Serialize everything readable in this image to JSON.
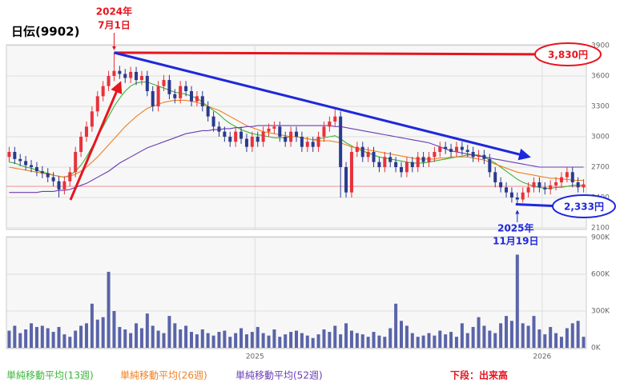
{
  "chart_data": {
    "type": "candlestick",
    "title": "日伝(9902)",
    "categories": [
      null,
      null,
      null,
      null,
      null,
      null,
      null,
      null,
      null,
      null,
      null,
      null,
      null,
      null,
      null,
      null,
      null,
      null,
      null,
      null,
      null,
      null,
      null,
      null,
      null,
      null,
      null,
      null,
      null,
      null,
      null,
      null,
      null,
      null,
      null,
      null,
      null,
      null,
      null,
      null,
      null,
      null,
      null,
      null,
      null,
      "2025",
      null,
      null,
      null,
      null,
      null,
      null,
      null,
      null,
      null,
      null,
      null,
      null,
      null,
      null,
      null,
      null,
      null,
      null,
      null,
      null,
      null,
      null,
      null,
      null,
      null,
      null,
      null,
      null,
      null,
      null,
      null,
      null,
      null,
      null,
      null,
      null,
      null,
      null,
      null,
      null,
      null,
      null,
      null,
      null,
      null,
      null,
      null,
      null,
      null,
      null,
      null,
      "2026",
      null,
      null,
      null,
      null,
      null,
      null,
      null
    ],
    "open": [
      2800,
      2850,
      2780,
      2760,
      2720,
      2700,
      2660,
      2640,
      2600,
      2560,
      2480,
      2560,
      2650,
      2850,
      3000,
      3100,
      3250,
      3400,
      3500,
      3600,
      3650,
      3620,
      3580,
      3640,
      3560,
      3600,
      3450,
      3300,
      3500,
      3560,
      3420,
      3380,
      3500,
      3450,
      3350,
      3400,
      3300,
      3200,
      3100,
      3050,
      3000,
      2950,
      3050,
      2980,
      2900,
      3000,
      2950,
      3050,
      3080,
      3100,
      3000,
      2950,
      3050,
      3000,
      2900,
      2950,
      2900,
      3000,
      3100,
      3150,
      3200,
      2700,
      2450,
      2850,
      2900,
      2800,
      2850,
      2750,
      2700,
      2800,
      2750,
      2700,
      2650,
      2750,
      2700,
      2800,
      2750,
      2800,
      2850,
      2900,
      2880,
      2850,
      2900,
      2870,
      2850,
      2800,
      2820,
      2780,
      2650,
      2550,
      2500,
      2450,
      2400,
      2380,
      2450,
      2500,
      2550,
      2500,
      2480,
      2520,
      2550,
      2600,
      2650,
      2550,
      2500
    ],
    "high": [
      2900,
      2900,
      2830,
      2810,
      2770,
      2750,
      2710,
      2690,
      2650,
      2610,
      2610,
      2700,
      2900,
      3050,
      3150,
      3300,
      3450,
      3550,
      3650,
      3830,
      3700,
      3670,
      3690,
      3690,
      3650,
      3650,
      3500,
      3550,
      3610,
      3610,
      3470,
      3550,
      3550,
      3500,
      3450,
      3450,
      3350,
      3250,
      3150,
      3100,
      3050,
      3100,
      3100,
      3030,
      3050,
      3050,
      3100,
      3130,
      3150,
      3150,
      3050,
      3100,
      3100,
      3050,
      3000,
      3000,
      3050,
      3150,
      3200,
      3280,
      3250,
      2750,
      2900,
      2950,
      2950,
      2900,
      2900,
      2800,
      2850,
      2850,
      2800,
      2750,
      2800,
      2800,
      2850,
      2850,
      2850,
      2900,
      2950,
      2950,
      2930,
      2950,
      2950,
      2920,
      2900,
      2870,
      2870,
      2830,
      2700,
      2600,
      2550,
      2500,
      2450,
      2500,
      2550,
      2600,
      2600,
      2550,
      2570,
      2600,
      2650,
      2700,
      2700,
      2600,
      2580
    ],
    "low": [
      2750,
      2730,
      2710,
      2670,
      2650,
      2610,
      2590,
      2550,
      2510,
      2400,
      2430,
      2510,
      2600,
      2800,
      2950,
      3050,
      3200,
      3350,
      3450,
      3550,
      3570,
      3530,
      3530,
      3510,
      3510,
      3400,
      3250,
      3250,
      3450,
      3370,
      3330,
      3330,
      3400,
      3300,
      3300,
      3250,
      3150,
      3050,
      3000,
      2950,
      2900,
      2900,
      2930,
      2850,
      2850,
      2900,
      2900,
      3000,
      3030,
      2950,
      2900,
      2900,
      2950,
      2850,
      2850,
      2850,
      2850,
      2950,
      3050,
      3100,
      2400,
      2400,
      2400,
      2800,
      2750,
      2750,
      2700,
      2650,
      2650,
      2700,
      2650,
      2600,
      2600,
      2650,
      2650,
      2700,
      2700,
      2750,
      2800,
      2830,
      2800,
      2800,
      2820,
      2800,
      2750,
      2750,
      2730,
      2600,
      2500,
      2450,
      2400,
      2350,
      2333,
      2350,
      2400,
      2450,
      2450,
      2430,
      2430,
      2470,
      2500,
      2550,
      2500,
      2450,
      2450
    ],
    "close": [
      2850,
      2780,
      2760,
      2720,
      2700,
      2660,
      2640,
      2600,
      2560,
      2480,
      2560,
      2650,
      2850,
      3000,
      3100,
      3250,
      3400,
      3500,
      3600,
      3650,
      3620,
      3580,
      3640,
      3560,
      3600,
      3450,
      3300,
      3500,
      3560,
      3420,
      3380,
      3500,
      3450,
      3350,
      3400,
      3300,
      3200,
      3100,
      3050,
      3000,
      2950,
      3050,
      2980,
      2900,
      3000,
      2950,
      3050,
      3080,
      3100,
      3000,
      2950,
      3050,
      3000,
      2900,
      2950,
      2900,
      3000,
      3100,
      3150,
      3200,
      2700,
      2450,
      2850,
      2900,
      2800,
      2850,
      2750,
      2700,
      2800,
      2750,
      2700,
      2650,
      2750,
      2700,
      2800,
      2750,
      2800,
      2850,
      2900,
      2880,
      2850,
      2900,
      2870,
      2850,
      2800,
      2820,
      2780,
      2650,
      2550,
      2500,
      2450,
      2400,
      2380,
      2450,
      2500,
      2550,
      2500,
      2480,
      2520,
      2550,
      2600,
      2650,
      2550,
      2500,
      2530
    ],
    "up_color": "#e8323c",
    "down_color": "#2b3a8f",
    "series": [
      {
        "name": "単純移動平均(13週)",
        "color": "#3cb43c",
        "values": [
          2750,
          2740,
          2720,
          2700,
          2690,
          2670,
          2650,
          2640,
          2620,
          2610,
          2600,
          2620,
          2660,
          2720,
          2800,
          2900,
          3000,
          3100,
          3200,
          3300,
          3380,
          3450,
          3500,
          3530,
          3540,
          3540,
          3520,
          3500,
          3480,
          3460,
          3440,
          3430,
          3420,
          3400,
          3380,
          3340,
          3300,
          3260,
          3220,
          3170,
          3130,
          3100,
          3070,
          3050,
          3030,
          3020,
          3010,
          3000,
          2990,
          2990,
          2990,
          3000,
          3000,
          2990,
          2980,
          2970,
          2980,
          2990,
          3000,
          3010,
          2980,
          2940,
          2910,
          2880,
          2860,
          2840,
          2820,
          2800,
          2790,
          2780,
          2770,
          2760,
          2750,
          2740,
          2740,
          2740,
          2750,
          2760,
          2770,
          2780,
          2790,
          2800,
          2810,
          2820,
          2820,
          2820,
          2800,
          2770,
          2740,
          2700,
          2660,
          2620,
          2580,
          2550,
          2530,
          2510,
          2500,
          2490,
          2490,
          2500,
          2500,
          2510,
          2520,
          2520,
          2520
        ]
      },
      {
        "name": "単純移動平均(26週)",
        "color": "#f08020",
        "values": [
          2700,
          2690,
          2680,
          2670,
          2660,
          2650,
          2640,
          2630,
          2620,
          2610,
          2600,
          2610,
          2630,
          2660,
          2700,
          2750,
          2800,
          2860,
          2920,
          2980,
          3040,
          3100,
          3150,
          3200,
          3240,
          3280,
          3300,
          3320,
          3340,
          3350,
          3360,
          3360,
          3360,
          3350,
          3340,
          3320,
          3300,
          3280,
          3260,
          3230,
          3200,
          3170,
          3140,
          3110,
          3090,
          3070,
          3050,
          3040,
          3030,
          3020,
          3010,
          3000,
          3000,
          2990,
          2980,
          2970,
          2960,
          2960,
          2960,
          2950,
          2940,
          2920,
          2900,
          2890,
          2880,
          2870,
          2860,
          2850,
          2840,
          2830,
          2820,
          2810,
          2800,
          2790,
          2780,
          2780,
          2780,
          2780,
          2790,
          2790,
          2800,
          2800,
          2800,
          2800,
          2790,
          2780,
          2770,
          2750,
          2730,
          2710,
          2690,
          2670,
          2650,
          2640,
          2630,
          2620,
          2610,
          2600,
          2590,
          2590,
          2580,
          2580,
          2570,
          2570,
          2570
        ]
      },
      {
        "name": "単純移動平均(52週)",
        "color": "#6a3cb4",
        "values": [
          2450,
          2450,
          2450,
          2450,
          2450,
          2450,
          2460,
          2460,
          2460,
          2470,
          2470,
          2480,
          2500,
          2520,
          2540,
          2570,
          2600,
          2630,
          2660,
          2700,
          2740,
          2770,
          2800,
          2830,
          2860,
          2890,
          2910,
          2930,
          2950,
          2970,
          2990,
          3010,
          3030,
          3040,
          3050,
          3060,
          3060,
          3070,
          3070,
          3080,
          3080,
          3090,
          3090,
          3100,
          3100,
          3110,
          3110,
          3110,
          3110,
          3110,
          3110,
          3110,
          3110,
          3110,
          3110,
          3110,
          3110,
          3110,
          3110,
          3100,
          3100,
          3090,
          3080,
          3070,
          3060,
          3050,
          3040,
          3030,
          3020,
          3010,
          3000,
          2990,
          2980,
          2970,
          2960,
          2950,
          2940,
          2920,
          2900,
          2880,
          2860,
          2850,
          2840,
          2830,
          2820,
          2810,
          2800,
          2790,
          2780,
          2770,
          2760,
          2750,
          2740,
          2730,
          2720,
          2710,
          2700,
          2700,
          2700,
          2700,
          2700,
          2700,
          2700,
          2700,
          2700
        ]
      }
    ],
    "ylim": [
      2100,
      3900
    ],
    "yticks": [
      2100,
      2400,
      2700,
      3000,
      3300,
      3600,
      3900
    ],
    "reference_line": 2510,
    "grid": true,
    "volume": {
      "label": "下段：出来高",
      "color": "#5a64a8",
      "values": [
        140,
        180,
        120,
        150,
        200,
        170,
        180,
        160,
        130,
        170,
        110,
        90,
        140,
        180,
        200,
        360,
        230,
        250,
        620,
        300,
        170,
        150,
        120,
        200,
        160,
        280,
        180,
        140,
        120,
        260,
        200,
        150,
        180,
        130,
        110,
        150,
        120,
        100,
        130,
        140,
        90,
        120,
        160,
        110,
        130,
        170,
        120,
        100,
        150,
        90,
        110,
        130,
        140,
        120,
        100,
        80,
        110,
        150,
        130,
        180,
        110,
        200,
        140,
        120,
        110,
        90,
        130,
        100,
        90,
        160,
        360,
        220,
        180,
        120,
        90,
        100,
        120,
        100,
        140,
        110,
        130,
        90,
        200,
        120,
        170,
        250,
        180,
        140,
        120,
        200,
        260,
        220,
        760,
        200,
        180,
        260,
        150,
        110,
        170,
        120,
        90,
        160,
        200,
        220,
        90
      ],
      "ylim": [
        0,
        900
      ],
      "yticks": [
        {
          "value": 0,
          "label": "0K"
        },
        {
          "value": 300,
          "label": "300K"
        },
        {
          "value": 600,
          "label": "600K"
        },
        {
          "value": 900,
          "label": "900K"
        }
      ]
    },
    "annotations": {
      "peak_date": [
        "2024年",
        "7月1日"
      ],
      "peak_price": {
        "value": 3830,
        "label": "3,830円"
      },
      "low_date": [
        "2025年",
        "11月19日"
      ],
      "low_price": {
        "value": 2333,
        "label": "2,333円"
      }
    }
  }
}
